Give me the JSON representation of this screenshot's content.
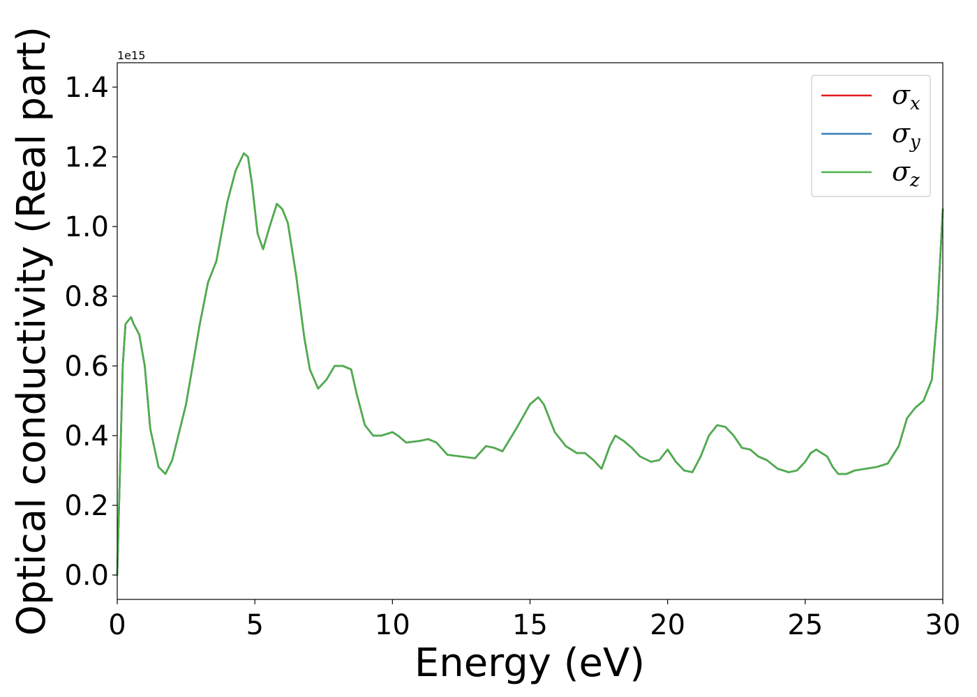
{
  "chart_data": {
    "type": "line",
    "xlabel": "Energy (eV)",
    "ylabel": "Optical conductivity (Real part)",
    "y_offset_label": "1e15",
    "xlim": [
      0,
      30
    ],
    "ylim": [
      -0.07,
      1.47
    ],
    "y_scale": 1000000000000000.0,
    "x_ticks": [
      0,
      5,
      10,
      15,
      20,
      25,
      30
    ],
    "x_tick_labels": [
      "0",
      "5",
      "10",
      "15",
      "20",
      "25",
      "30"
    ],
    "y_ticks": [
      0.0,
      0.2,
      0.4,
      0.6,
      0.8,
      1.0,
      1.2,
      1.4
    ],
    "y_tick_labels": [
      "0.0",
      "0.2",
      "0.4",
      "0.6",
      "0.8",
      "1.0",
      "1.2",
      "1.4"
    ],
    "grid": false,
    "legend_position": "top-right",
    "x": [
      0,
      0.1,
      0.2,
      0.3,
      0.5,
      0.6,
      0.8,
      1.0,
      1.2,
      1.5,
      1.75,
      2.0,
      2.5,
      3.0,
      3.3,
      3.6,
      4.0,
      4.3,
      4.6,
      4.75,
      4.9,
      5.1,
      5.3,
      5.5,
      5.8,
      6.0,
      6.2,
      6.5,
      6.8,
      7.0,
      7.3,
      7.6,
      7.9,
      8.2,
      8.5,
      8.7,
      9.0,
      9.3,
      9.6,
      10.0,
      10.2,
      10.5,
      11.0,
      11.3,
      11.6,
      12.0,
      12.5,
      13.0,
      13.4,
      13.7,
      14.0,
      14.5,
      15.0,
      15.3,
      15.5,
      15.9,
      16.3,
      16.7,
      17.0,
      17.3,
      17.6,
      17.9,
      18.1,
      18.4,
      18.7,
      19.0,
      19.4,
      19.7,
      20.0,
      20.3,
      20.6,
      20.9,
      21.2,
      21.5,
      21.8,
      22.1,
      22.4,
      22.7,
      23.0,
      23.3,
      23.6,
      24.0,
      24.4,
      24.7,
      25.0,
      25.2,
      25.4,
      25.8,
      26.0,
      26.2,
      26.5,
      26.8,
      27.2,
      27.6,
      28.0,
      28.4,
      28.7,
      29.0,
      29.3,
      29.6,
      29.8,
      30.0
    ],
    "series": [
      {
        "name": "σx",
        "color": "#e41a1c",
        "y": [
          0.0,
          0.3,
          0.6,
          0.72,
          0.74,
          0.72,
          0.69,
          0.6,
          0.42,
          0.31,
          0.29,
          0.33,
          0.49,
          0.72,
          0.84,
          0.9,
          1.07,
          1.16,
          1.21,
          1.2,
          1.12,
          0.98,
          0.935,
          0.99,
          1.065,
          1.05,
          1.01,
          0.86,
          0.68,
          0.59,
          0.535,
          0.56,
          0.6,
          0.6,
          0.59,
          0.52,
          0.43,
          0.4,
          0.4,
          0.41,
          0.4,
          0.38,
          0.385,
          0.39,
          0.38,
          0.345,
          0.34,
          0.335,
          0.37,
          0.365,
          0.355,
          0.42,
          0.49,
          0.51,
          0.49,
          0.41,
          0.37,
          0.35,
          0.35,
          0.33,
          0.305,
          0.37,
          0.4,
          0.385,
          0.365,
          0.34,
          0.325,
          0.33,
          0.36,
          0.325,
          0.3,
          0.295,
          0.34,
          0.4,
          0.43,
          0.425,
          0.4,
          0.365,
          0.36,
          0.34,
          0.33,
          0.305,
          0.295,
          0.3,
          0.325,
          0.35,
          0.36,
          0.34,
          0.31,
          0.29,
          0.29,
          0.3,
          0.305,
          0.31,
          0.32,
          0.37,
          0.45,
          0.48,
          0.5,
          0.56,
          0.75,
          1.05
        ]
      },
      {
        "name": "σy",
        "color": "#377eb8",
        "y": [
          0.0,
          0.3,
          0.6,
          0.72,
          0.74,
          0.72,
          0.69,
          0.6,
          0.42,
          0.31,
          0.29,
          0.33,
          0.49,
          0.72,
          0.84,
          0.9,
          1.07,
          1.16,
          1.21,
          1.2,
          1.12,
          0.98,
          0.935,
          0.99,
          1.065,
          1.05,
          1.01,
          0.86,
          0.68,
          0.59,
          0.535,
          0.56,
          0.6,
          0.6,
          0.59,
          0.52,
          0.43,
          0.4,
          0.4,
          0.41,
          0.4,
          0.38,
          0.385,
          0.39,
          0.38,
          0.345,
          0.34,
          0.335,
          0.37,
          0.365,
          0.355,
          0.42,
          0.49,
          0.51,
          0.49,
          0.41,
          0.37,
          0.35,
          0.35,
          0.33,
          0.305,
          0.37,
          0.4,
          0.385,
          0.365,
          0.34,
          0.325,
          0.33,
          0.36,
          0.325,
          0.3,
          0.295,
          0.34,
          0.4,
          0.43,
          0.425,
          0.4,
          0.365,
          0.36,
          0.34,
          0.33,
          0.305,
          0.295,
          0.3,
          0.325,
          0.35,
          0.36,
          0.34,
          0.31,
          0.29,
          0.29,
          0.3,
          0.305,
          0.31,
          0.32,
          0.37,
          0.45,
          0.48,
          0.5,
          0.56,
          0.75,
          1.05
        ]
      },
      {
        "name": "σz",
        "color": "#4daf4a",
        "y": [
          0.0,
          0.3,
          0.6,
          0.72,
          0.74,
          0.72,
          0.69,
          0.6,
          0.42,
          0.31,
          0.29,
          0.33,
          0.49,
          0.72,
          0.84,
          0.9,
          1.07,
          1.16,
          1.21,
          1.2,
          1.12,
          0.98,
          0.935,
          0.99,
          1.065,
          1.05,
          1.01,
          0.86,
          0.68,
          0.59,
          0.535,
          0.56,
          0.6,
          0.6,
          0.59,
          0.52,
          0.43,
          0.4,
          0.4,
          0.41,
          0.4,
          0.38,
          0.385,
          0.39,
          0.38,
          0.345,
          0.34,
          0.335,
          0.37,
          0.365,
          0.355,
          0.42,
          0.49,
          0.51,
          0.49,
          0.41,
          0.37,
          0.35,
          0.35,
          0.33,
          0.305,
          0.37,
          0.4,
          0.385,
          0.365,
          0.34,
          0.325,
          0.33,
          0.36,
          0.325,
          0.3,
          0.295,
          0.34,
          0.4,
          0.43,
          0.425,
          0.4,
          0.365,
          0.36,
          0.34,
          0.33,
          0.305,
          0.295,
          0.3,
          0.325,
          0.35,
          0.36,
          0.34,
          0.31,
          0.29,
          0.29,
          0.3,
          0.305,
          0.31,
          0.32,
          0.37,
          0.45,
          0.48,
          0.5,
          0.56,
          0.75,
          1.05
        ]
      }
    ],
    "legend": [
      {
        "symbol": "σ",
        "subscript": "x",
        "color": "#e41a1c"
      },
      {
        "symbol": "σ",
        "subscript": "y",
        "color": "#377eb8"
      },
      {
        "symbol": "σ",
        "subscript": "z",
        "color": "#4daf4a"
      }
    ]
  }
}
